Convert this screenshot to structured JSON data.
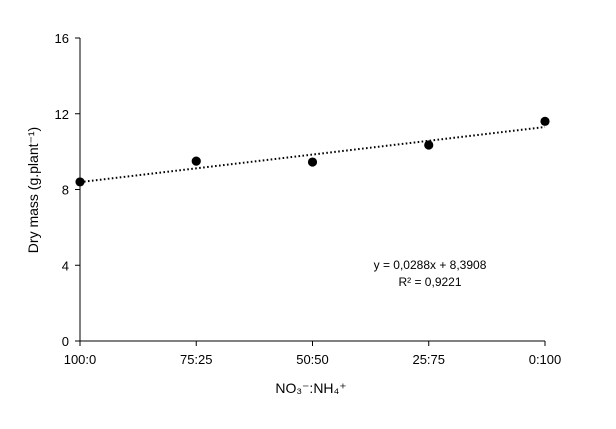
{
  "chart_data": {
    "type": "scatter",
    "title": "",
    "xlabel": "NO₃⁻:NH₄⁺",
    "ylabel": "Dry mass (g.plant⁻¹)",
    "categories": [
      "100:0",
      "75:25",
      "50:50",
      "25:75",
      "0:100"
    ],
    "ylim": [
      0,
      16
    ],
    "yticks": [
      "0",
      "4",
      "8",
      "12",
      "16"
    ],
    "series": [
      {
        "values": [
          8.4,
          9.5,
          9.45,
          10.35,
          11.6
        ]
      }
    ],
    "trendline": {
      "start": 8.39,
      "end": 11.3,
      "style": "dotted"
    },
    "equation_lines": [
      "y = 0,0288x + 8,3908",
      "R² = 0,9221"
    ],
    "grid": false,
    "colors": {
      "marker": "#000000",
      "axis": "#000000",
      "trend": "#000000"
    }
  }
}
